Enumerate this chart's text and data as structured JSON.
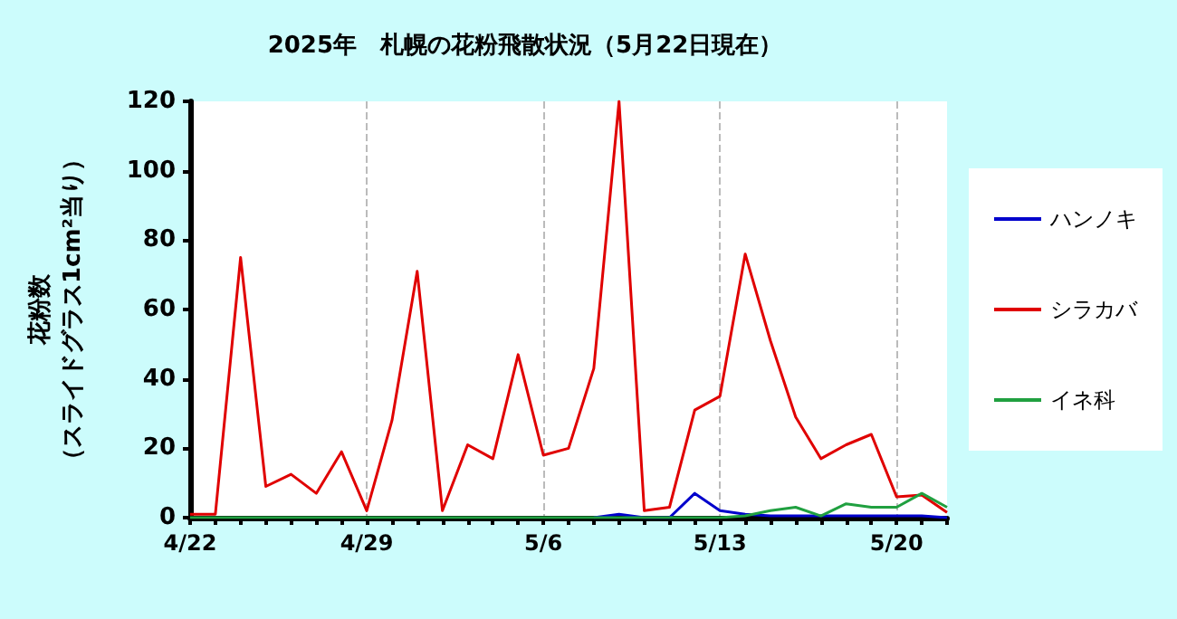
{
  "chart_data": {
    "type": "line",
    "title": "2025年　札幌の花粉飛散状況（5月22日現在）",
    "ylabel": "花粉数",
    "annotations": [
      "（スライドグラス1cm²当り）"
    ],
    "categories": [
      "4/22",
      null,
      null,
      null,
      null,
      null,
      null,
      "4/29",
      null,
      null,
      null,
      null,
      null,
      null,
      "5/6",
      null,
      null,
      null,
      null,
      null,
      null,
      "5/13",
      null,
      null,
      null,
      null,
      null,
      null,
      "5/20",
      null,
      null
    ],
    "series": [
      {
        "name": "ハンノキ",
        "color": "#0000cc",
        "values": [
          null,
          null,
          null,
          null,
          null,
          null,
          null,
          null,
          null,
          null,
          null,
          null,
          null,
          null,
          null,
          null,
          0,
          1,
          0,
          0,
          7,
          2,
          1,
          0.5,
          0.5,
          0.5,
          0.5,
          0.5,
          0.5,
          0.5,
          0
        ]
      },
      {
        "name": "シラカバ",
        "color": "#e00000",
        "values": [
          1,
          1,
          75,
          9,
          12.5,
          7,
          19,
          2,
          28,
          71,
          2,
          21,
          17,
          47,
          18,
          20,
          43,
          120,
          2,
          3,
          31,
          35,
          76,
          51,
          29,
          17,
          21,
          24,
          6,
          6.5,
          1.5
        ]
      },
      {
        "name": "イネ科",
        "color": "#20a040",
        "values": [
          0,
          0,
          0,
          0,
          0,
          0,
          0,
          0,
          0,
          0,
          0,
          0,
          0,
          0,
          0,
          0,
          0,
          0,
          0,
          0,
          0,
          0,
          0.5,
          2,
          3,
          0.5,
          4,
          3,
          3,
          7,
          3
        ]
      }
    ],
    "ylim": [
      0,
      120
    ],
    "yticks": [
      0,
      20,
      40,
      60,
      80,
      100,
      120
    ],
    "grid": "x",
    "legend": "right",
    "marker": "none",
    "line_style": "solid"
  }
}
